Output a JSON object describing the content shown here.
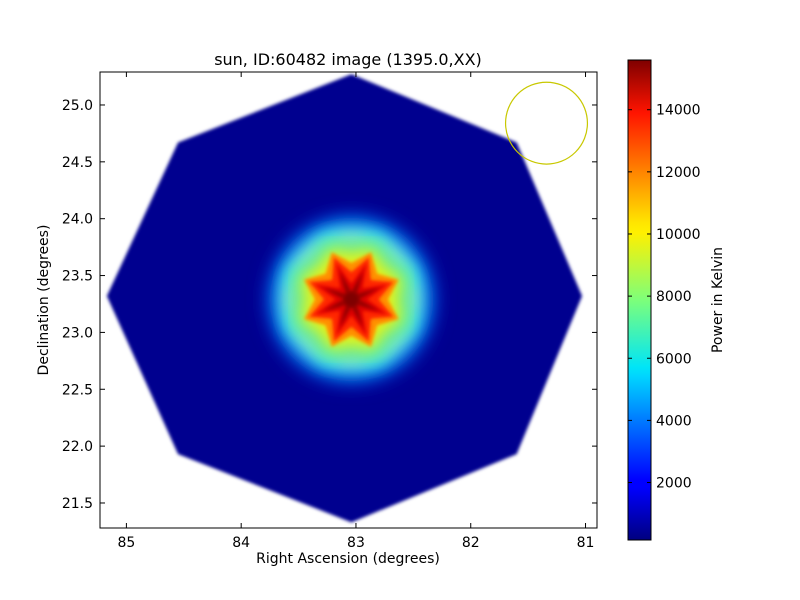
{
  "chart_data": {
    "type": "heatmap",
    "title": "sun, ID:60482 image (1395.0,XX)",
    "xlabel": "Right Ascension (degrees)",
    "ylabel": "Declination (degrees)",
    "xlim": [
      85.23,
      80.9
    ],
    "ylim": [
      21.28,
      25.29
    ],
    "x_ticks": [
      85,
      84,
      83,
      82,
      81
    ],
    "y_ticks": [
      21.5,
      22.0,
      22.5,
      23.0,
      23.5,
      24.0,
      24.5,
      25.0
    ],
    "x_tick_labels": [
      "85",
      "84",
      "83",
      "82",
      "81"
    ],
    "y_tick_labels": [
      "21.5",
      "22.0",
      "22.5",
      "23.0",
      "23.5",
      "24.0",
      "24.5",
      "25.0"
    ],
    "colormap": "jet",
    "colorbar": {
      "label": "Power in Kelvin",
      "range": [
        150,
        15600
      ],
      "ticks": [
        2000,
        4000,
        6000,
        8000,
        10000,
        12000,
        14000
      ],
      "tick_labels": [
        "2000",
        "4000",
        "6000",
        "8000",
        "10000",
        "12000",
        "14000"
      ]
    },
    "map_region": {
      "shape": "octagon",
      "center": [
        83.04,
        23.29
      ],
      "vertices": [
        [
          83.04,
          25.27
        ],
        [
          81.6,
          24.67
        ],
        [
          81.03,
          23.32
        ],
        [
          81.6,
          21.93
        ],
        [
          83.04,
          21.33
        ],
        [
          84.55,
          21.93
        ],
        [
          85.17,
          23.32
        ],
        [
          84.55,
          24.67
        ]
      ],
      "background_value": 150
    },
    "source": {
      "center": [
        83.04,
        23.29
      ],
      "peak_value": 15600,
      "shape": "8-pointed star"
    },
    "beam_circle": {
      "center": [
        81.34,
        24.84
      ],
      "radius_deg": 0.36,
      "color": "#c8c800"
    }
  }
}
